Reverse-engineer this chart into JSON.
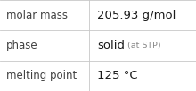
{
  "rows": [
    {
      "label": "molar mass",
      "value": "205.93 g/mol",
      "suffix": null
    },
    {
      "label": "phase",
      "value": "solid",
      "suffix": "(at STP)"
    },
    {
      "label": "melting point",
      "value": "125 °C",
      "suffix": null
    }
  ],
  "background_color": "#ffffff",
  "border_color": "#c8c8c8",
  "label_color": "#404040",
  "value_color": "#1a1a1a",
  "suffix_color": "#888888",
  "label_fontsize": 8.5,
  "value_fontsize": 9.5,
  "suffix_fontsize": 6.8,
  "col_split": 0.455,
  "fig_width": 2.2,
  "fig_height": 1.03,
  "dpi": 100
}
